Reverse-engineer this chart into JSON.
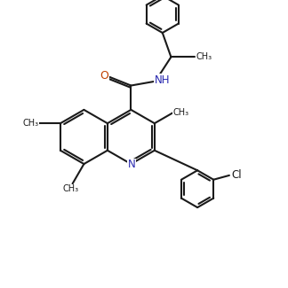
{
  "bg_color": "#ffffff",
  "line_color": "#1a1a1a",
  "N_color": "#2828b0",
  "O_color": "#c04000",
  "linewidth": 1.5,
  "figsize": [
    3.24,
    3.25
  ],
  "dpi": 100,
  "xlim": [
    0,
    10
  ],
  "ylim": [
    0,
    10.1
  ]
}
